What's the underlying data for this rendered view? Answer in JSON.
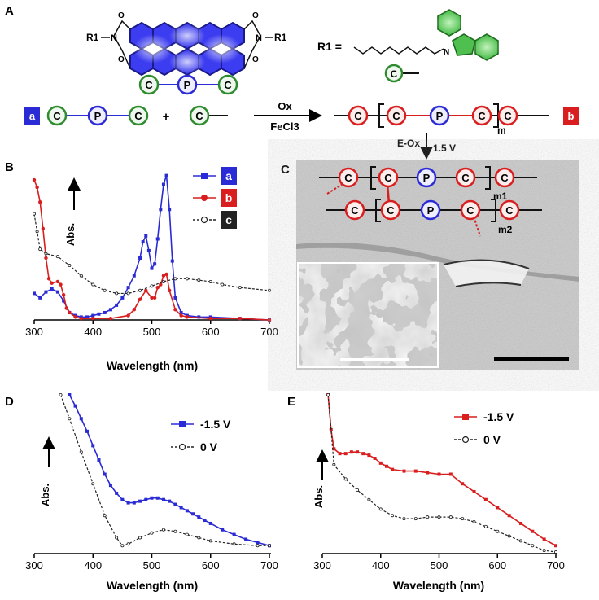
{
  "panels": {
    "A": {
      "label": "A",
      "r_group_left": "R1",
      "r_group_right": "R1",
      "r_def_lhs": "R1 =",
      "n_atom": "N",
      "o_atom": "O",
      "monomer_tag": "a",
      "product_tag": "b",
      "plus": "+",
      "arrow_top": "Ox",
      "arrow_bottom": "FeCl3",
      "subscript_m": "m",
      "e_ox_label": "E-Ox",
      "e_ox_value": "1.5 V",
      "node_c": "C",
      "node_p": "P"
    },
    "B": {
      "label": "B",
      "abs_label": "Abs.",
      "xlabel": "Wavelength (nm)",
      "legend": [
        "a",
        "b",
        "c"
      ]
    },
    "C": {
      "label": "C",
      "m1": "m1",
      "m2": "m2"
    },
    "D": {
      "label": "D",
      "abs_label": "Abs.",
      "xlabel": "Wavelength (nm)",
      "legend": [
        "-1.5 V",
        "0 V"
      ]
    },
    "E": {
      "label": "E",
      "abs_label": "Abs.",
      "xlabel": "Wavelength (nm)",
      "legend": [
        "-1.5 V",
        "0 V"
      ]
    }
  },
  "colors": {
    "blue": "#2b2bd6",
    "red": "#d81e1e",
    "green": "#2e8b2e",
    "black": "#222222"
  },
  "chart_data": [
    {
      "panel": "B",
      "type": "line",
      "xlabel": "Wavelength (nm)",
      "ylabel": "Abs.",
      "xlim": [
        300,
        700
      ],
      "ylim": [
        0,
        1
      ],
      "xticks": [
        300,
        400,
        500,
        600,
        700
      ],
      "series": [
        {
          "name": "a",
          "color": "#2b2bd6",
          "marker": "square",
          "x": [
            300,
            310,
            320,
            330,
            340,
            350,
            360,
            370,
            380,
            390,
            400,
            410,
            420,
            430,
            440,
            450,
            460,
            470,
            480,
            485,
            490,
            495,
            500,
            505,
            510,
            515,
            520,
            525,
            530,
            535,
            540,
            550,
            560,
            580,
            600,
            650,
            700
          ],
          "y": [
            0.18,
            0.15,
            0.19,
            0.21,
            0.19,
            0.13,
            0.05,
            0.03,
            0.02,
            0.02,
            0.03,
            0.04,
            0.05,
            0.07,
            0.1,
            0.15,
            0.22,
            0.3,
            0.42,
            0.53,
            0.57,
            0.47,
            0.35,
            0.38,
            0.55,
            0.75,
            0.92,
            0.98,
            0.75,
            0.4,
            0.15,
            0.05,
            0.03,
            0.02,
            0.02,
            0.01,
            0.0
          ]
        },
        {
          "name": "b",
          "color": "#d81e1e",
          "marker": "circle",
          "x": [
            300,
            305,
            310,
            315,
            320,
            325,
            330,
            340,
            345,
            350,
            355,
            360,
            370,
            380,
            400,
            430,
            460,
            470,
            480,
            490,
            500,
            505,
            510,
            515,
            520,
            525,
            530,
            540,
            550,
            560,
            600,
            650,
            700
          ],
          "y": [
            0.95,
            0.9,
            0.8,
            0.62,
            0.42,
            0.28,
            0.25,
            0.26,
            0.24,
            0.17,
            0.08,
            0.05,
            0.02,
            0.01,
            0.01,
            0.01,
            0.03,
            0.07,
            0.14,
            0.2,
            0.15,
            0.15,
            0.22,
            0.24,
            0.3,
            0.31,
            0.2,
            0.07,
            0.03,
            0.02,
            0.01,
            0.01,
            0.0
          ]
        },
        {
          "name": "c",
          "color": "#222222",
          "marker": "open-circle",
          "x": [
            300,
            305,
            310,
            320,
            340,
            360,
            380,
            400,
            420,
            440,
            460,
            480,
            500,
            520,
            540,
            560,
            580,
            600,
            620,
            650,
            700
          ],
          "y": [
            0.72,
            0.6,
            0.48,
            0.45,
            0.43,
            0.37,
            0.3,
            0.24,
            0.2,
            0.18,
            0.18,
            0.2,
            0.23,
            0.26,
            0.28,
            0.28,
            0.27,
            0.26,
            0.24,
            0.22,
            0.2
          ]
        }
      ]
    },
    {
      "panel": "D",
      "type": "line",
      "xlabel": "Wavelength (nm)",
      "ylabel": "Abs.",
      "xlim": [
        300,
        700
      ],
      "ylim": [
        0,
        1
      ],
      "xticks": [
        300,
        400,
        500,
        600,
        700
      ],
      "series": [
        {
          "name": "-1.5 V",
          "color": "#2b2bd6",
          "marker": "square",
          "x": [
            360,
            370,
            380,
            390,
            400,
            410,
            420,
            430,
            440,
            450,
            460,
            470,
            480,
            490,
            500,
            510,
            520,
            530,
            540,
            550,
            560,
            570,
            580,
            590,
            600,
            620,
            640,
            660,
            680,
            700
          ],
          "y": [
            1.0,
            0.93,
            0.85,
            0.77,
            0.68,
            0.59,
            0.5,
            0.43,
            0.38,
            0.34,
            0.32,
            0.32,
            0.33,
            0.34,
            0.35,
            0.35,
            0.34,
            0.33,
            0.31,
            0.29,
            0.27,
            0.25,
            0.23,
            0.21,
            0.19,
            0.15,
            0.12,
            0.09,
            0.07,
            0.05
          ]
        },
        {
          "name": "0 V",
          "color": "#222222",
          "marker": "open-circle",
          "x": [
            345,
            360,
            380,
            400,
            420,
            440,
            450,
            460,
            480,
            500,
            520,
            540,
            560,
            580,
            600,
            640,
            680,
            700
          ],
          "y": [
            1.0,
            0.85,
            0.64,
            0.44,
            0.24,
            0.1,
            0.05,
            0.06,
            0.1,
            0.13,
            0.15,
            0.14,
            0.12,
            0.1,
            0.08,
            0.06,
            0.05,
            0.05
          ]
        }
      ]
    },
    {
      "panel": "E",
      "type": "line",
      "xlabel": "Wavelength (nm)",
      "ylabel": "Abs.",
      "xlim": [
        300,
        700
      ],
      "ylim": [
        0,
        1
      ],
      "xticks": [
        300,
        400,
        500,
        600,
        700
      ],
      "series": [
        {
          "name": "-1.5 V",
          "color": "#d81e1e",
          "marker": "square",
          "x": [
            310,
            315,
            320,
            330,
            340,
            350,
            360,
            370,
            380,
            390,
            400,
            410,
            420,
            440,
            460,
            480,
            500,
            520,
            540,
            560,
            580,
            600,
            620,
            640,
            660,
            680,
            700
          ],
          "y": [
            1.0,
            0.78,
            0.66,
            0.63,
            0.63,
            0.64,
            0.64,
            0.63,
            0.62,
            0.6,
            0.57,
            0.55,
            0.53,
            0.52,
            0.52,
            0.51,
            0.5,
            0.5,
            0.44,
            0.39,
            0.34,
            0.29,
            0.24,
            0.19,
            0.14,
            0.09,
            0.05
          ]
        },
        {
          "name": "0 V",
          "color": "#222222",
          "marker": "open-circle",
          "x": [
            310,
            320,
            340,
            360,
            380,
            400,
            420,
            440,
            460,
            480,
            500,
            520,
            540,
            560,
            580,
            600,
            620,
            640,
            660,
            680,
            700
          ],
          "y": [
            1.0,
            0.56,
            0.47,
            0.4,
            0.34,
            0.28,
            0.24,
            0.22,
            0.22,
            0.23,
            0.23,
            0.23,
            0.22,
            0.2,
            0.17,
            0.14,
            0.11,
            0.08,
            0.05,
            0.02,
            0.01
          ]
        }
      ]
    }
  ]
}
